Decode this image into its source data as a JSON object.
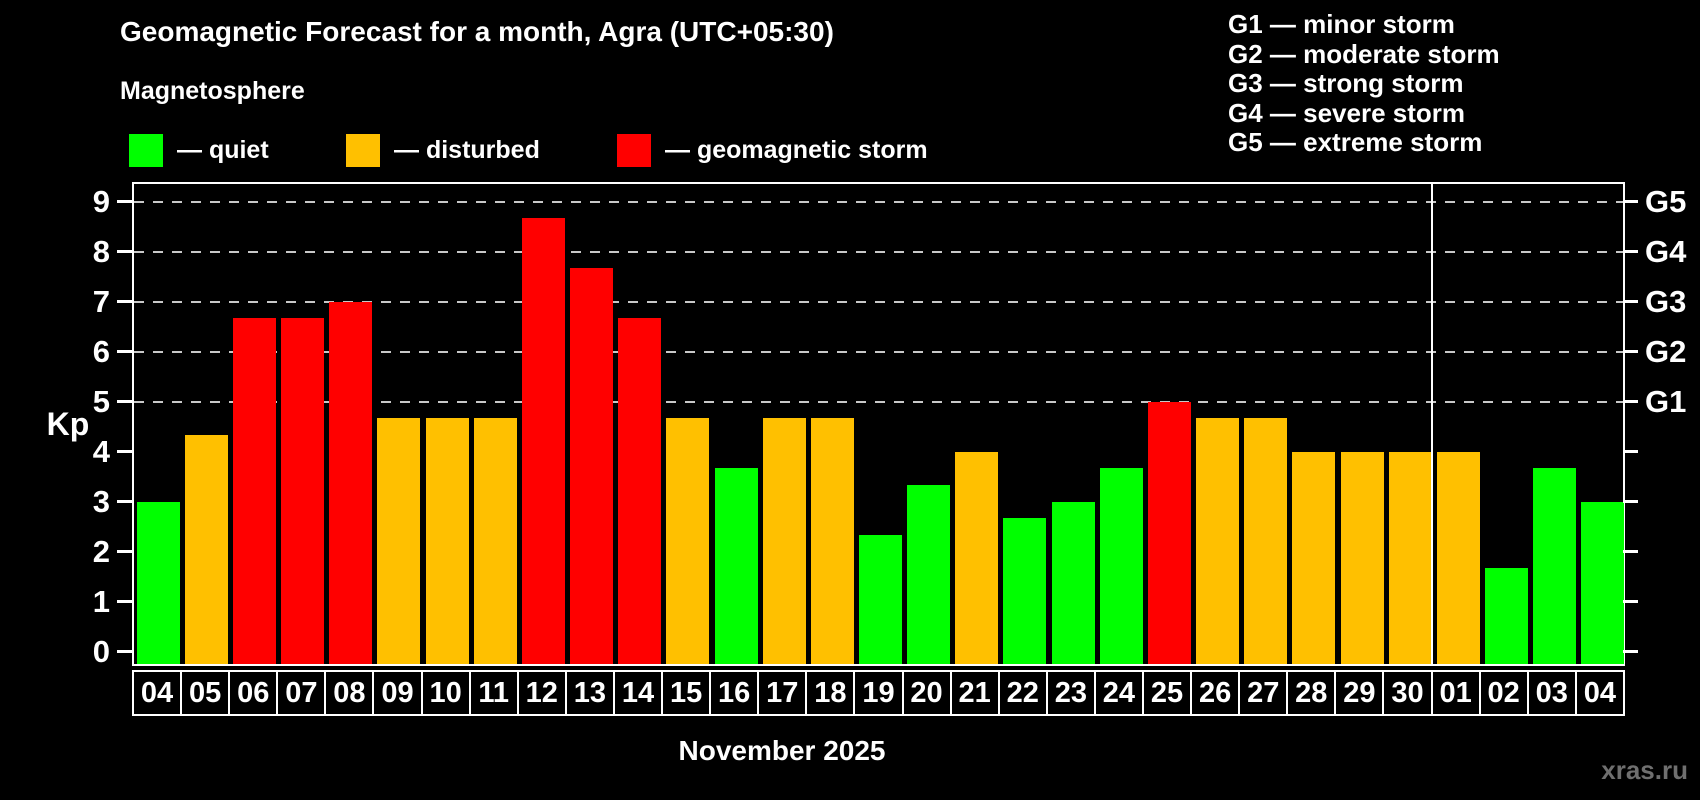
{
  "header": {
    "title": "Geomagnetic Forecast for a month, Agra (UTC+05:30)",
    "subtitle": "Magnetosphere"
  },
  "legend": {
    "items": [
      {
        "status": "quiet",
        "label": "— quiet"
      },
      {
        "status": "disturbed",
        "label": "— disturbed"
      },
      {
        "status": "storm",
        "label": "— geomagnetic storm"
      }
    ]
  },
  "g_scale_legend": {
    "lines": [
      "G1 — minor storm",
      "G2 — moderate storm",
      "G3 — strong storm",
      "G4 — severe storm",
      "G5 — extreme storm"
    ]
  },
  "colors": {
    "quiet": "#00ff00",
    "disturbed": "#ffc000",
    "storm": "#ff0000",
    "grid": "#c8c8c8",
    "axis": "#ffffff",
    "watermark": "#6f6f6f"
  },
  "chart_data": {
    "type": "bar",
    "title": "Geomagnetic Forecast for a month, Agra (UTC+05:30)",
    "subtitle": "Magnetosphere",
    "ylabel": "Kp",
    "xlabel": "November 2025",
    "ylim": [
      0,
      9
    ],
    "yticks": [
      0,
      1,
      2,
      3,
      4,
      5,
      6,
      7,
      8,
      9
    ],
    "grid": "dashed horizontal lines at Kp 5,6,7,8,9",
    "legend_position": "top",
    "categories": [
      "04",
      "05",
      "06",
      "07",
      "08",
      "09",
      "10",
      "11",
      "12",
      "13",
      "14",
      "15",
      "16",
      "17",
      "18",
      "19",
      "20",
      "21",
      "22",
      "23",
      "24",
      "25",
      "26",
      "27",
      "28",
      "29",
      "30",
      "01",
      "02",
      "03",
      "04"
    ],
    "values": [
      3,
      4.33,
      6.67,
      6.67,
      7,
      4.67,
      4.67,
      4.67,
      8.67,
      7.67,
      6.67,
      4.67,
      3.67,
      4.67,
      4.67,
      2.33,
      3.33,
      4,
      2.67,
      3,
      3.67,
      5,
      4.67,
      4.67,
      4,
      4,
      4,
      4,
      1.67,
      3.67,
      3
    ],
    "statuses": [
      "quiet",
      "disturbed",
      "storm",
      "storm",
      "storm",
      "disturbed",
      "disturbed",
      "disturbed",
      "storm",
      "storm",
      "storm",
      "disturbed",
      "quiet",
      "disturbed",
      "disturbed",
      "quiet",
      "quiet",
      "disturbed",
      "quiet",
      "quiet",
      "quiet",
      "storm",
      "disturbed",
      "disturbed",
      "disturbed",
      "disturbed",
      "disturbed",
      "disturbed",
      "quiet",
      "quiet",
      "quiet"
    ],
    "right_axis_labels": [
      {
        "kp": 5,
        "label": "G1"
      },
      {
        "kp": 6,
        "label": "G2"
      },
      {
        "kp": 7,
        "label": "G3"
      },
      {
        "kp": 8,
        "label": "G4"
      },
      {
        "kp": 9,
        "label": "G5"
      }
    ],
    "month_divider_after_category_index": 26
  },
  "footer": {
    "month_label": "November 2025",
    "watermark": "xras.ru"
  }
}
